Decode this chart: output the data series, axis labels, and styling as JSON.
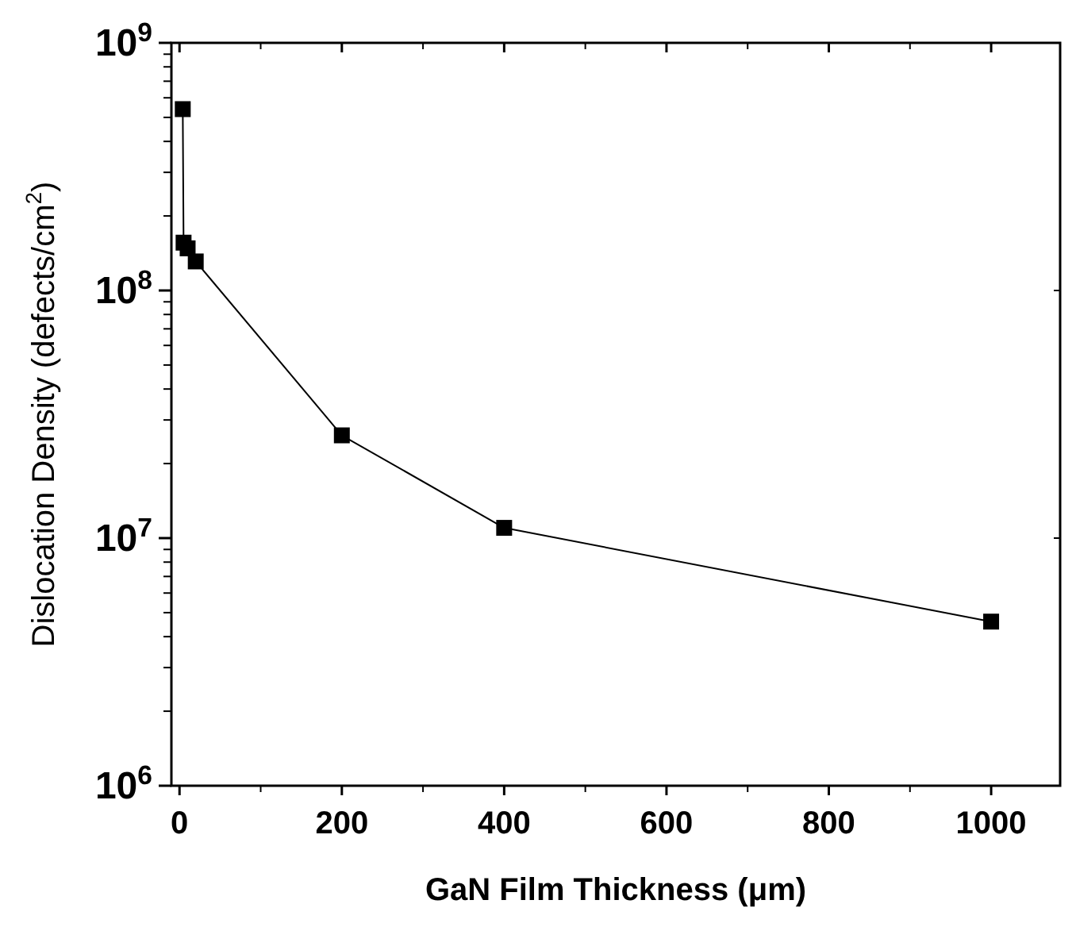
{
  "chart_data": {
    "type": "line",
    "xlabel": "GaN Film Thickness (μm)",
    "ylabel": "Dislocation Density (defects/cm$^{2}$)",
    "x": [
      4,
      5,
      10,
      20,
      200,
      400,
      1000
    ],
    "series": [
      {
        "color": "#000000",
        "values": [
          540000000,
          156000000,
          148000000,
          131000000,
          26000000,
          11000000,
          4600000
        ]
      }
    ],
    "marker": "square",
    "line_style": "solid",
    "log": true,
    "grid": false,
    "xlim": [
      -10,
      1085
    ],
    "xticks": [
      0,
      200,
      400,
      600,
      800,
      1000
    ],
    "ylim": [
      1000000,
      1000000000
    ],
    "yticks": [
      {
        "value": 1000000,
        "label": "10$^{6}$"
      },
      {
        "value": 10000000,
        "label": "10$^{7}$"
      },
      {
        "value": 100000000,
        "label": "10$^{8}$"
      },
      {
        "value": 1000000000,
        "label": "10$^{9}$"
      }
    ]
  }
}
